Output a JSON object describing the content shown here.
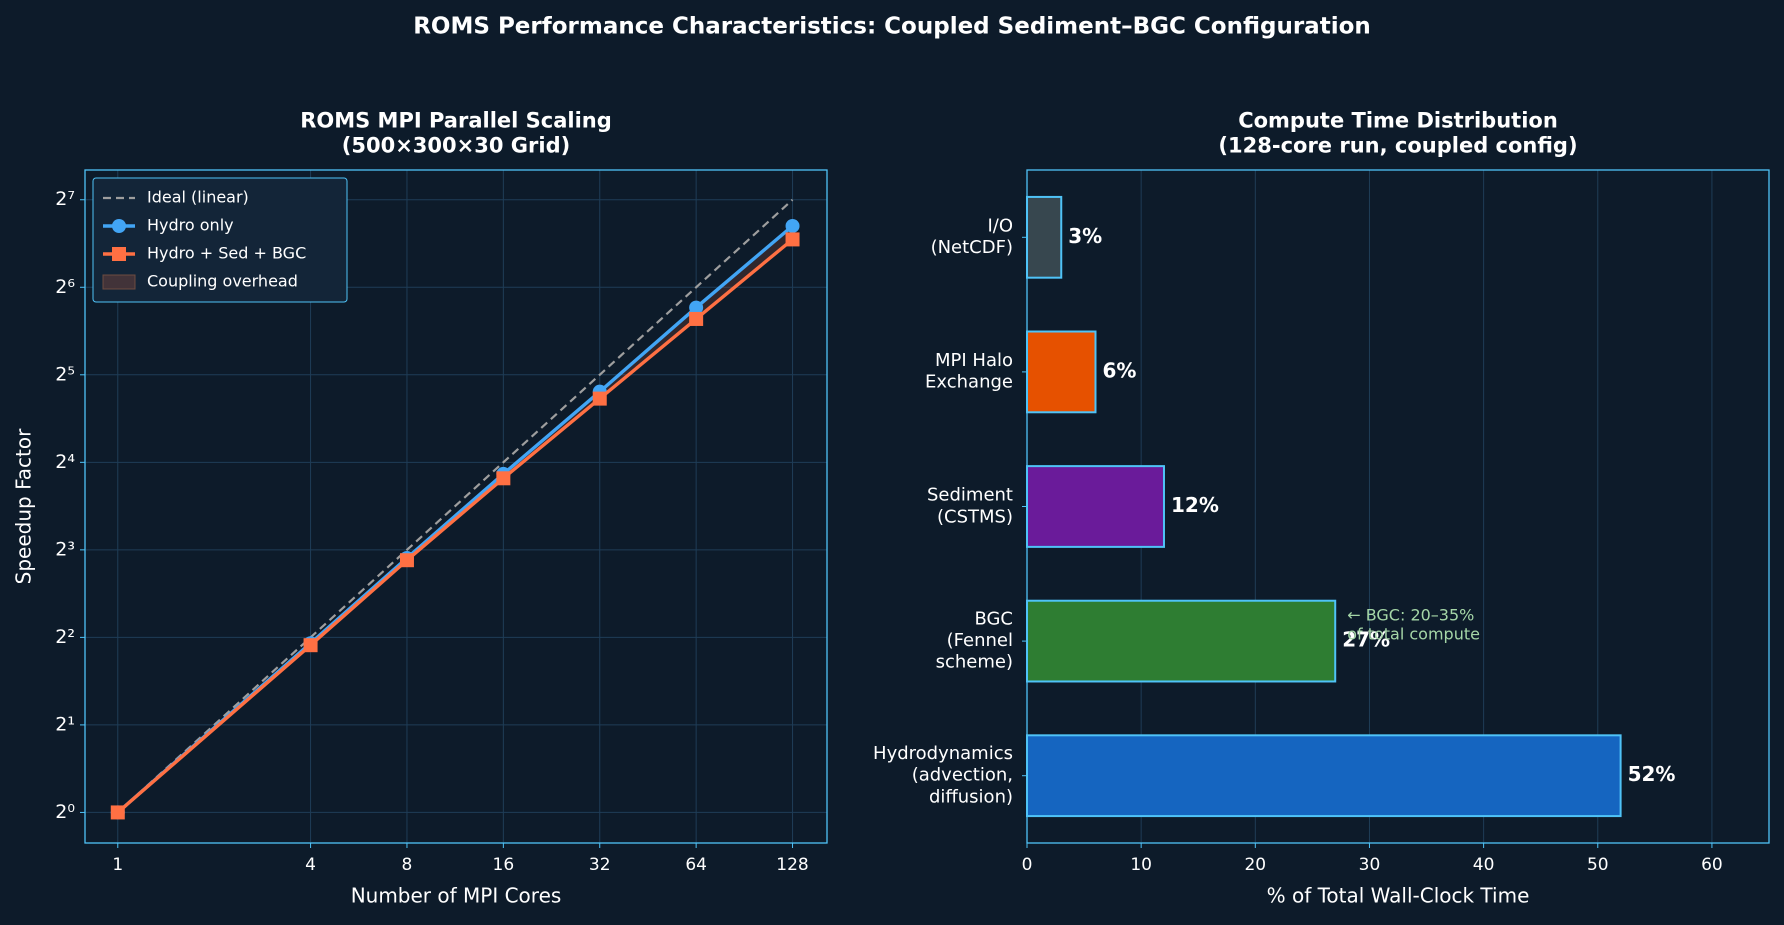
{
  "title": "ROMS Performance Characteristics: Coupled Sediment–BGC Configuration",
  "chart_data": [
    {
      "type": "line",
      "title": "ROMS MPI Parallel Scaling\n(500×300×30 Grid)",
      "x_label": "Number of MPI Cores",
      "y_label": "Speedup Factor",
      "x": [
        1,
        4,
        8,
        16,
        32,
        64,
        128
      ],
      "series": [
        {
          "name": "Ideal (linear)",
          "color": "#9e9e9e",
          "dash": true,
          "marker": "none",
          "values": [
            1,
            4,
            8,
            16,
            32,
            64,
            128
          ]
        },
        {
          "name": "Hydro only",
          "color": "#42a5f5",
          "marker": "circle",
          "values": [
            1,
            3.82,
            7.5,
            14.6,
            28,
            54.5,
            104
          ]
        },
        {
          "name": "Hydro + Sed + BGC",
          "color": "#ff7043",
          "marker": "square",
          "values": [
            1,
            3.76,
            7.37,
            14.1,
            26.5,
            49.8,
            93.5
          ]
        }
      ],
      "fill_between": {
        "name": "Coupling overhead",
        "color": "#ff7043"
      },
      "log_x": true,
      "log_y": true,
      "log_base": 2,
      "xlim": [
        0.79,
        164
      ],
      "ylim": [
        0.785,
        162
      ],
      "xticks": [
        1,
        4,
        8,
        16,
        32,
        64,
        128
      ],
      "yticks": [
        {
          "value": 1,
          "label": "2⁰"
        },
        {
          "value": 2,
          "label": "2¹"
        },
        {
          "value": 4,
          "label": "2²"
        },
        {
          "value": 8,
          "label": "2³"
        },
        {
          "value": 16,
          "label": "2⁴"
        },
        {
          "value": 32,
          "label": "2⁵"
        },
        {
          "value": 64,
          "label": "2⁶"
        },
        {
          "value": 128,
          "label": "2⁷"
        }
      ],
      "grid": true,
      "legend": "upper left"
    },
    {
      "type": "hbar",
      "title": "Compute Time Distribution\n(128-core run, coupled config)",
      "x_label": "% of Total Wall-Clock Time",
      "categories": [
        "I/O\n(NetCDF)",
        "MPI Halo\nExchange",
        "Sediment\n(CSTMS)",
        "BGC\n(Fennel\nscheme)",
        "Hydrodynamics\n(advection,\ndiffusion)"
      ],
      "values": [
        3,
        6,
        12,
        27,
        52
      ],
      "value_labels": [
        "3%",
        "6%",
        "12%",
        "27%",
        "52%"
      ],
      "colors": [
        "#37474f",
        "#e65100",
        "#6a1b9a",
        "#2e7d32",
        "#1565c0"
      ],
      "edge_color": "#4fc3f7",
      "xlim": [
        0,
        65
      ],
      "xticks": [
        0,
        10,
        20,
        30,
        40,
        50,
        60
      ],
      "grid": true,
      "annotation": {
        "text": "← BGC: 20–35%\nof total compute",
        "category": 3,
        "color": "#a5d6a7"
      }
    }
  ]
}
